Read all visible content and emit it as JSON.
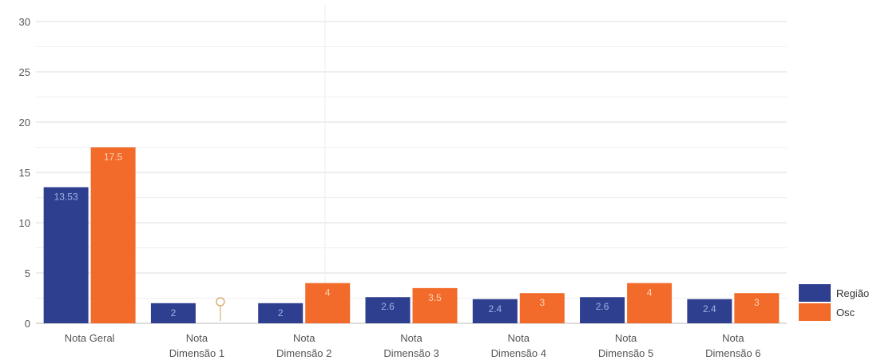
{
  "chart_data": {
    "type": "bar",
    "categories": [
      "Nota Geral",
      "Nota Dimensão 1",
      "Nota Dimensão 2",
      "Nota Dimensão 3",
      "Nota Dimensão 4",
      "Nota Dimensão 5",
      "Nota Dimensão 6"
    ],
    "series": [
      {
        "name": "Região",
        "color": "#2e3f8f",
        "values": [
          13.53,
          2,
          2,
          2.6,
          2.4,
          2.6,
          2.4
        ]
      },
      {
        "name": "Osc",
        "color": "#f26b2a",
        "values": [
          17.5,
          0,
          4,
          3.5,
          3,
          4,
          3
        ]
      }
    ],
    "ylim": [
      0,
      30
    ],
    "yticks": [
      0,
      5,
      10,
      15,
      20,
      25,
      30
    ],
    "grid": true,
    "legend": "right"
  }
}
